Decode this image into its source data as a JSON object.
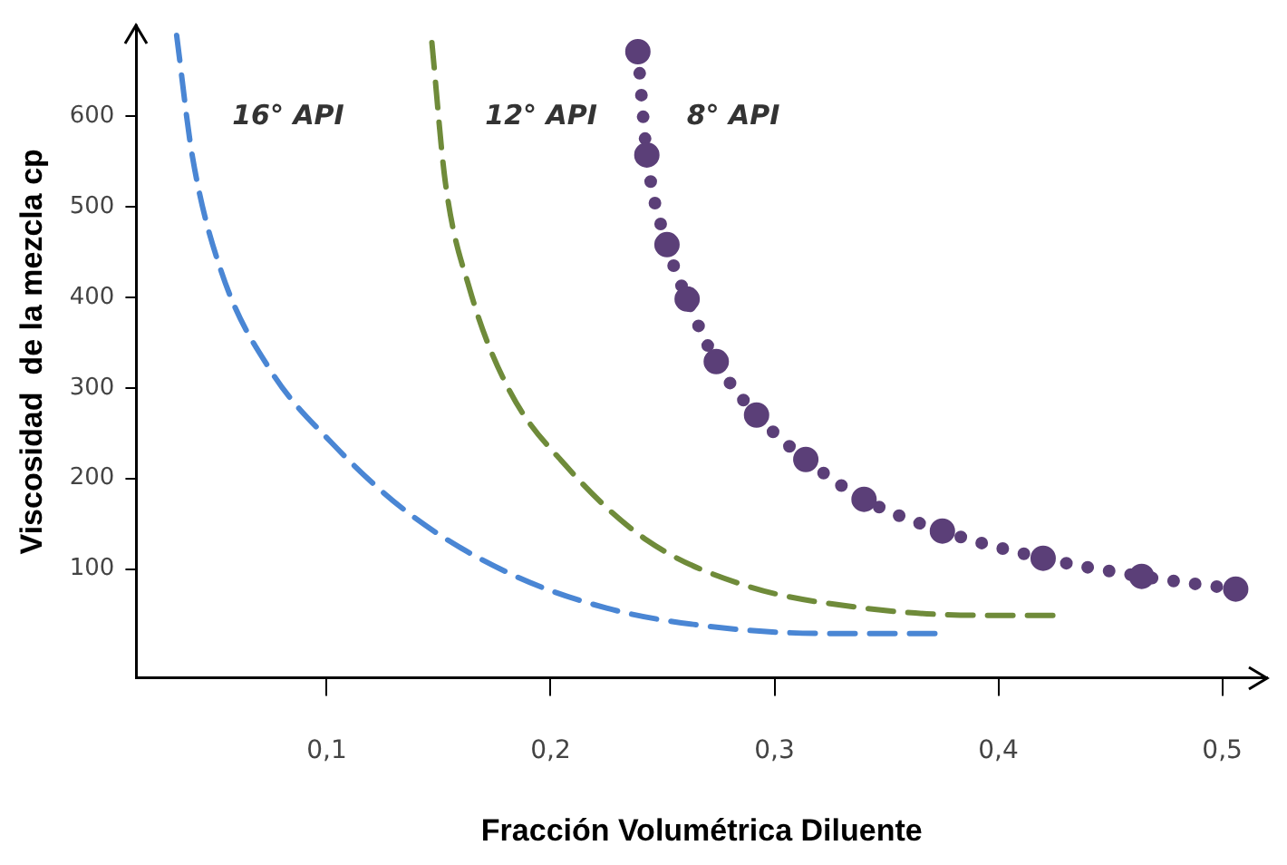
{
  "chart_data": {
    "type": "line",
    "xlabel": "Fracción Volumétrica Diluente",
    "ylabel": "Viscosidad  de la mezcla cp",
    "xlim": [
      0.015,
      0.52
    ],
    "ylim": [
      -20,
      700
    ],
    "xticks": [
      {
        "value": 0.1,
        "label": "0,1"
      },
      {
        "value": 0.2,
        "label": "0,2"
      },
      {
        "value": 0.3,
        "label": "0,3"
      },
      {
        "value": 0.4,
        "label": "0,4"
      },
      {
        "value": 0.5,
        "label": "0,5"
      }
    ],
    "yticks": [
      100,
      200,
      300,
      400,
      500,
      600
    ],
    "grid": false,
    "legend": false,
    "series": [
      {
        "name": "16° API",
        "color": "#4a86d4",
        "line_style": "dashed",
        "marker": "none",
        "x": [
          0.033,
          0.04,
          0.053,
          0.075,
          0.102,
          0.137,
          0.181,
          0.225,
          0.27,
          0.323,
          0.373
        ],
        "values": [
          689,
          556,
          428,
          319,
          240,
          161,
          96,
          57,
          37,
          29,
          29
        ]
      },
      {
        "name": "12° API",
        "color": "#6f8b3a",
        "line_style": "dashed",
        "marker": "none",
        "x": [
          0.147,
          0.153,
          0.164,
          0.181,
          0.208,
          0.243,
          0.287,
          0.34,
          0.393,
          0.426
        ],
        "values": [
          681,
          527,
          408,
          300,
          211,
          132,
          82,
          57,
          49,
          49
        ]
      },
      {
        "name": "8° API",
        "color": "#5b3f78",
        "line_style": "dotted",
        "marker": "circle",
        "x": [
          0.239,
          0.243,
          0.252,
          0.261,
          0.274,
          0.292,
          0.314,
          0.34,
          0.375,
          0.42,
          0.464,
          0.506
        ],
        "values": [
          671,
          557,
          458,
          398,
          329,
          270,
          221,
          177,
          142,
          112,
          92,
          78
        ]
      }
    ]
  }
}
